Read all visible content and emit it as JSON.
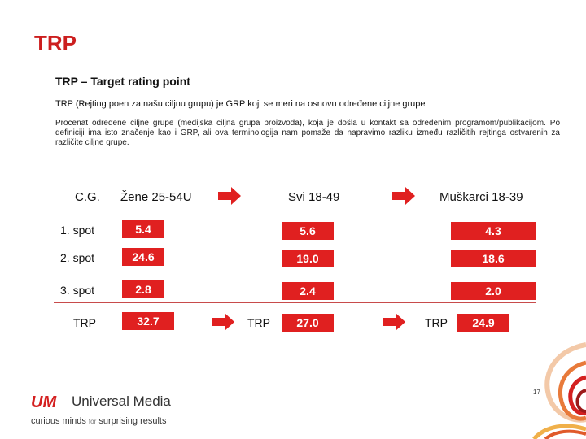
{
  "title": "TRP",
  "subtitle": "TRP – Target rating point",
  "definition": "TRP (Rejting poen za našu ciljnu grupu) je GRP koji se meri na osnovu određene ciljne grupe",
  "paragraph": "Procenat određene ciljne grupe (medijska ciljna grupa proizvoda), koja je došla u kontakt sa određenim programom/publikacijom. Po definiciji ima isto značenje kao i GRP, ali ova terminologija nam pomaže da napravimo razliku između različitih rejtinga ostvarenih za različite ciljne grupe.",
  "table": {
    "header": {
      "cg": "C.G.",
      "group1": "Žene 25-54U",
      "group2": "Svi 18-49",
      "group3": "Muškarci 18-39"
    },
    "rows": [
      {
        "label": "1. spot",
        "v1": "5.4",
        "v2": "5.6",
        "v3": "4.3"
      },
      {
        "label": "2. spot",
        "v1": "24.6",
        "v2": "19.0",
        "v3": "18.6"
      },
      {
        "label": "3. spot",
        "v1": "2.8",
        "v2": "2.4",
        "v3": "2.0"
      }
    ],
    "trp": {
      "label": "TRP",
      "v1": "32.7",
      "label2": "TRP",
      "v2": "27.0",
      "label3": "TRP",
      "v3": "24.9"
    }
  },
  "logo": {
    "mark": "UM",
    "name": "Universal Media",
    "tagline_a": "curious minds",
    "tagline_for": "for",
    "tagline_b": "surprising results"
  },
  "page_number": "17",
  "colors": {
    "accent": "#e02020",
    "title": "#cc1e1e"
  }
}
